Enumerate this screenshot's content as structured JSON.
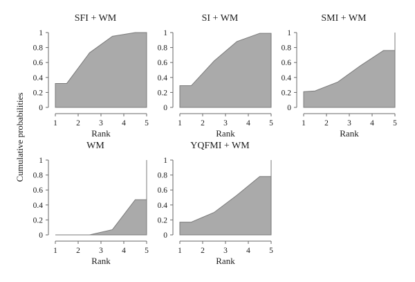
{
  "figure": {
    "shared_ylabel": "Cumulative probabilities"
  },
  "chart_data": [
    {
      "type": "area",
      "title": "SFI + WM",
      "xlabel": "Rank",
      "ylabel": "Cumulative probabilities",
      "x": [
        1,
        1.5,
        2.5,
        3.5,
        4.5,
        5
      ],
      "values": [
        0.32,
        0.32,
        0.73,
        0.95,
        1.0,
        1.0
      ],
      "xticks": [
        1,
        2,
        3,
        4,
        5
      ],
      "yticks": [
        0,
        0.2,
        0.4,
        0.6,
        0.8,
        1
      ],
      "ytick_labels": [
        "0",
        "0.2",
        "0.4",
        "0.6",
        "0.8",
        "1"
      ],
      "xlim": [
        1,
        5
      ],
      "ylim": [
        0,
        1
      ],
      "grid": false
    },
    {
      "type": "area",
      "title": "SI + WM",
      "xlabel": "Rank",
      "ylabel": "Cumulative probabilities",
      "x": [
        1,
        1.5,
        2.5,
        3.5,
        4.5,
        5
      ],
      "values": [
        0.29,
        0.29,
        0.62,
        0.88,
        0.99,
        0.99
      ],
      "xticks": [
        1,
        2,
        3,
        4,
        5
      ],
      "yticks": [
        0,
        0.2,
        0.4,
        0.6,
        0.8,
        1
      ],
      "ytick_labels": [
        "0",
        "0.2",
        "0.4",
        "0.6",
        "0.8",
        "1"
      ],
      "xlim": [
        1,
        5
      ],
      "ylim": [
        0,
        1
      ],
      "grid": false
    },
    {
      "type": "area",
      "title": "SMI + WM",
      "xlabel": "Rank",
      "ylabel": "Cumulative probabilities",
      "x": [
        1,
        1.5,
        2.5,
        3.5,
        4.5,
        5
      ],
      "values": [
        0.21,
        0.22,
        0.34,
        0.56,
        0.76,
        0.76
      ],
      "x_end_jump_to": 1.0,
      "xticks": [
        1,
        2,
        3,
        4,
        5
      ],
      "yticks": [
        0,
        0.2,
        0.4,
        0.6,
        0.8,
        1
      ],
      "ytick_labels": [
        "0",
        "0.2",
        "0.4",
        "0.6",
        "0.8",
        "1"
      ],
      "xlim": [
        1,
        5
      ],
      "ylim": [
        0,
        1
      ],
      "grid": false
    },
    {
      "type": "area",
      "title": "WM",
      "xlabel": "Rank",
      "ylabel": "Cumulative probabilities",
      "x": [
        1,
        1.5,
        2.5,
        3.5,
        4.5,
        5
      ],
      "values": [
        0.0,
        0.0,
        0.0,
        0.07,
        0.47,
        0.47
      ],
      "x_end_jump_to": 1.0,
      "xticks": [
        1,
        2,
        3,
        4,
        5
      ],
      "yticks": [
        0,
        0.2,
        0.4,
        0.6,
        0.8,
        1
      ],
      "ytick_labels": [
        "0",
        "0.2",
        "0.4",
        "0.6",
        "0.8",
        "1"
      ],
      "xlim": [
        1,
        5
      ],
      "ylim": [
        0,
        1
      ],
      "grid": false
    },
    {
      "type": "area",
      "title": "YQFMI + WM",
      "xlabel": "Rank",
      "ylabel": "Cumulative probabilities",
      "x": [
        1,
        1.5,
        2.5,
        3.5,
        4.5,
        5
      ],
      "values": [
        0.17,
        0.17,
        0.3,
        0.53,
        0.78,
        0.78
      ],
      "x_end_jump_to": 1.0,
      "xticks": [
        1,
        2,
        3,
        4,
        5
      ],
      "yticks": [
        0,
        0.2,
        0.4,
        0.6,
        0.8,
        1
      ],
      "ytick_labels": [
        "0",
        "0.2",
        "0.4",
        "0.6",
        "0.8",
        "1"
      ],
      "xlim": [
        1,
        5
      ],
      "ylim": [
        0,
        1
      ],
      "grid": false
    }
  ]
}
